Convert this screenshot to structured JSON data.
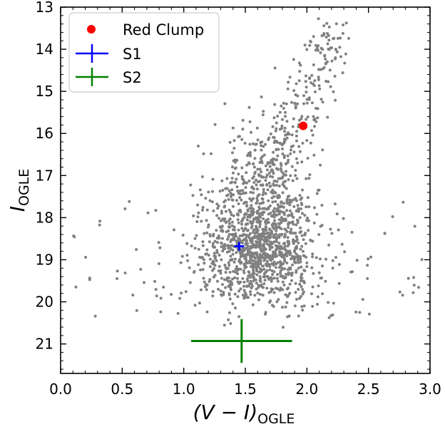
{
  "chart_data": {
    "type": "scatter",
    "xlabel": {
      "main": "(V − I)",
      "sub": "OGLE"
    },
    "ylabel": {
      "main": "I",
      "sub": "OGLE"
    },
    "xlim": [
      0.0,
      3.0
    ],
    "ylim": [
      21.7,
      13.0
    ],
    "y_inverted": true,
    "x_ticks": [
      "0.0",
      "0.5",
      "1.0",
      "1.5",
      "2.0",
      "2.5",
      "3.0"
    ],
    "y_ticks": [
      "13",
      "14",
      "15",
      "16",
      "17",
      "18",
      "19",
      "20",
      "21"
    ],
    "grid": false,
    "legend_position": "top-left",
    "legend": [
      {
        "label": "Red Clump",
        "marker": "circle",
        "color": "#ff0000"
      },
      {
        "label": "S1",
        "marker": "plus",
        "color": "#0000ff"
      },
      {
        "label": "S2",
        "marker": "plus",
        "color": "#008000"
      }
    ],
    "field_stars": {
      "color": "#808080",
      "count": 1700,
      "x_range": [
        0.1,
        3.0
      ],
      "y_range": [
        13.2,
        20.7
      ],
      "density_peak": [
        1.6,
        18.8
      ]
    },
    "red_clump": {
      "x": 1.97,
      "y": 15.82,
      "color": "#ff0000"
    },
    "S1": {
      "x": 1.45,
      "y": 18.68,
      "xerr": 0.04,
      "yerr": 0.1,
      "color": "#0000ff"
    },
    "S2": {
      "x": 1.47,
      "y": 20.93,
      "xerr": 0.41,
      "yerr": 0.52,
      "color": "#008000"
    }
  }
}
